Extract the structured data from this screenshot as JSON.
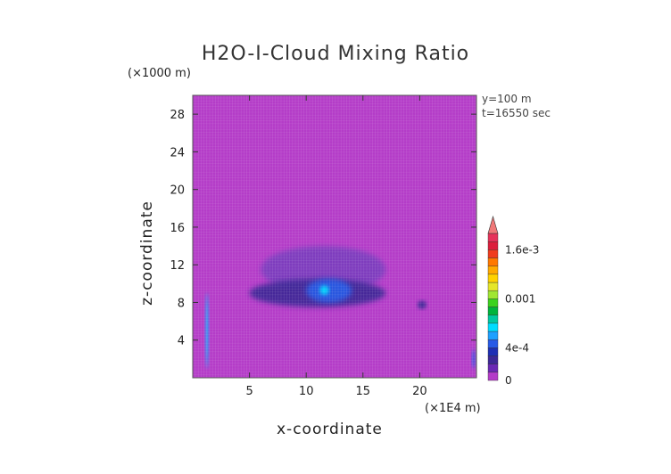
{
  "chart_data": {
    "type": "heatmap",
    "title": "H2O-I-Cloud Mixing Ratio",
    "xlabel": "x-coordinate",
    "ylabel": "z-coordinate",
    "x_unit": "(×1E4 m)",
    "y_unit": "(×1000 m)",
    "annotations": [
      "y=100 m",
      "t=16550 sec"
    ],
    "xlim": [
      0,
      25
    ],
    "ylim": [
      0,
      30
    ],
    "x_ticks": [
      {
        "value": 5,
        "label": "5"
      },
      {
        "value": 10,
        "label": "10"
      },
      {
        "value": 15,
        "label": "15"
      },
      {
        "value": 20,
        "label": "20"
      }
    ],
    "y_ticks": [
      {
        "value": 4,
        "label": "4"
      },
      {
        "value": 8,
        "label": "8"
      },
      {
        "value": 12,
        "label": "12"
      },
      {
        "value": 16,
        "label": "16"
      },
      {
        "value": 20,
        "label": "20"
      },
      {
        "value": 24,
        "label": "24"
      },
      {
        "value": 28,
        "label": "28"
      }
    ],
    "grid": true,
    "background_value": 0,
    "colorbar": {
      "placement": "right",
      "levels": [
        {
          "value": 0,
          "color": "#b43cc8"
        },
        {
          "value": 0.0001,
          "color": "#6a28b4"
        },
        {
          "value": 0.0002,
          "color": "#3c2896"
        },
        {
          "value": 0.0003,
          "color": "#1e2fb4"
        },
        {
          "value": 0.0004,
          "color": "#285ae6"
        },
        {
          "value": 0.0005,
          "color": "#1ea0ff"
        },
        {
          "value": 0.0006,
          "color": "#00dcff"
        },
        {
          "value": 0.0007,
          "color": "#00c8a0"
        },
        {
          "value": 0.0008,
          "color": "#00b43c"
        },
        {
          "value": 0.0009,
          "color": "#3cd21e"
        },
        {
          "value": 0.001,
          "color": "#a0e632"
        },
        {
          "value": 0.0011,
          "color": "#e6e628"
        },
        {
          "value": 0.0012,
          "color": "#ffd200"
        },
        {
          "value": 0.0013,
          "color": "#ffaa00"
        },
        {
          "value": 0.0014,
          "color": "#ff7800"
        },
        {
          "value": 0.0015,
          "color": "#f03c1e"
        },
        {
          "value": 0.0016,
          "color": "#dc1e3c"
        },
        {
          "value": 0.0017,
          "color": "#e6325a"
        }
      ],
      "extend_color": "#f07878",
      "tick_labels": [
        {
          "value": 0,
          "label": "0"
        },
        {
          "value": 0.0004,
          "label": "4e-4"
        },
        {
          "value": 0.001,
          "label": "0.001"
        },
        {
          "value": 0.0016,
          "label": "1.6e-3"
        }
      ]
    },
    "features": [
      {
        "name": "left-column",
        "x_range": [
          1.1,
          1.4
        ],
        "z_range": [
          1,
          9
        ],
        "color": "#1ea0ff"
      },
      {
        "name": "left-column-core",
        "x_range": [
          1.2,
          1.3
        ],
        "z_range": [
          2,
          8
        ],
        "color": "#00dcff"
      },
      {
        "name": "anvil-haze",
        "x_range": [
          6,
          17
        ],
        "z_range": [
          9,
          14
        ],
        "color": "#7a3cbe"
      },
      {
        "name": "main-cloud-band",
        "x_range": [
          5,
          17
        ],
        "z_range": [
          7.5,
          10.5
        ],
        "color": "#3c2896"
      },
      {
        "name": "main-cloud-core",
        "x_range": [
          10,
          14
        ],
        "z_range": [
          8,
          10.5
        ],
        "color": "#285ae6"
      },
      {
        "name": "main-cloud-peak",
        "x_range": [
          11.2,
          12
        ],
        "z_range": [
          8.8,
          9.8
        ],
        "color": "#00dcff"
      },
      {
        "name": "right-blob",
        "x_range": [
          19.8,
          20.6
        ],
        "z_range": [
          7.3,
          8.2
        ],
        "color": "#3c2896"
      },
      {
        "name": "right-edge-column",
        "x_range": [
          24.6,
          24.9
        ],
        "z_range": [
          1,
          3
        ],
        "color": "#285ae6"
      }
    ]
  }
}
